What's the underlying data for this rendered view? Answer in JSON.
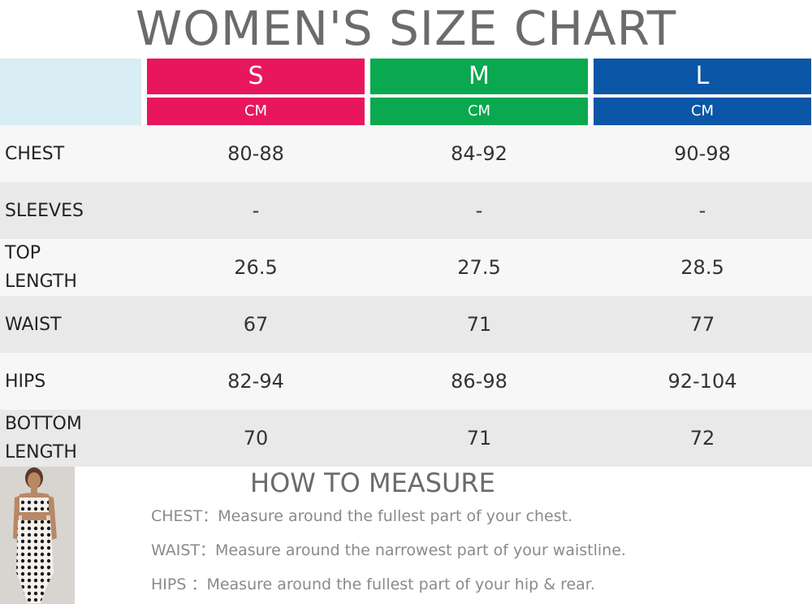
{
  "title": "WOMEN'S SIZE CHART",
  "sizes": [
    {
      "name": "S",
      "unit": "CM",
      "color": "#e8175d"
    },
    {
      "name": "M",
      "unit": "CM",
      "color": "#0aa84f"
    },
    {
      "name": "L",
      "unit": "CM",
      "color": "#0b56a6"
    }
  ],
  "rows": [
    {
      "label": "CHEST",
      "values": [
        "80-88",
        "84-92",
        "90-98"
      ]
    },
    {
      "label": "SLEEVES",
      "values": [
        "-",
        "-",
        "-"
      ]
    },
    {
      "label": "TOP LENGTH",
      "values": [
        "26.5",
        "27.5",
        "28.5"
      ]
    },
    {
      "label": "WAIST",
      "values": [
        "67",
        "71",
        "77"
      ]
    },
    {
      "label": "HIPS",
      "values": [
        "82-94",
        "86-98",
        "92-104"
      ]
    },
    {
      "label": "BOTTOM LENGTH",
      "values": [
        "70",
        "71",
        "72"
      ]
    }
  ],
  "measure": {
    "title": "HOW TO MEASURE",
    "lines": [
      "CHEST：Measure around the fullest part of your chest.",
      "WAIST：Measure around the narrowest part of your waistline.",
      "HIPS  ：Measure around the fullest part of your hip & rear."
    ]
  }
}
